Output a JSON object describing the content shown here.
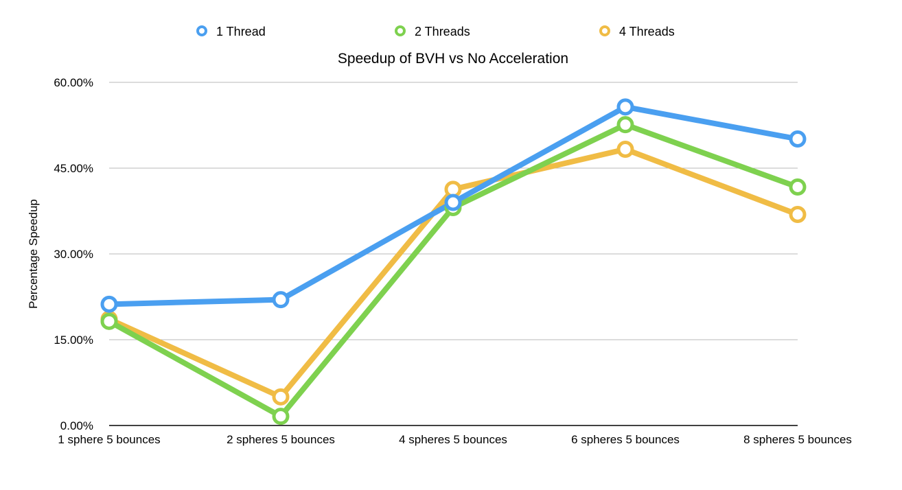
{
  "chart_data": {
    "type": "line",
    "title": "Speedup of BVH vs No Acceleration",
    "xlabel": "",
    "ylabel": "Percentage Speedup",
    "categories": [
      "1 sphere 5 bounces",
      "2 spheres 5 bounces",
      "4 spheres 5 bounces",
      "6 spheres 5 bounces",
      "8 spheres 5 bounces"
    ],
    "ylim": [
      0,
      60
    ],
    "yticks": [
      0,
      15,
      30,
      45,
      60
    ],
    "ytick_labels": [
      "0.00%",
      "15.00%",
      "30.00%",
      "45.00%",
      "60.00%"
    ],
    "grid": true,
    "legend": "top",
    "series": [
      {
        "name": "1 Thread",
        "color": "#4a9ff0",
        "values": [
          21.2,
          22.0,
          39.0,
          55.7,
          50.1
        ]
      },
      {
        "name": "2 Threads",
        "color": "#7ed14f",
        "values": [
          18.2,
          1.6,
          38.1,
          52.6,
          41.7
        ]
      },
      {
        "name": "4 Threads",
        "color": "#f0bc45",
        "values": [
          18.6,
          5.0,
          41.3,
          48.3,
          36.9
        ]
      }
    ]
  }
}
